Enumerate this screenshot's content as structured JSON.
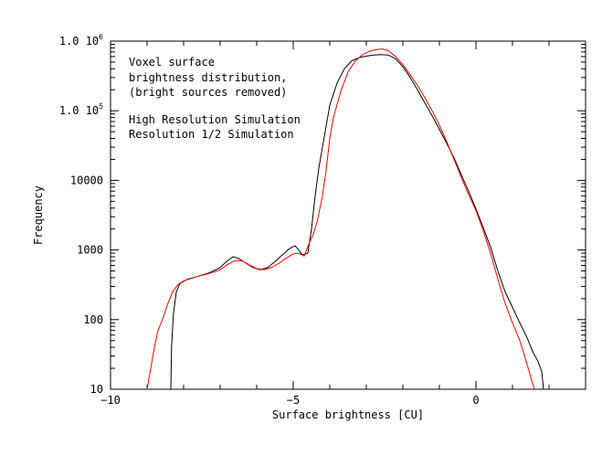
{
  "chart_data": {
    "type": "line",
    "title": "",
    "xlabel": "Surface brightness [CU]",
    "ylabel": "Frequency",
    "xlim": [
      -10,
      3
    ],
    "ylim": [
      10,
      1000000
    ],
    "yscale": "log",
    "x_ticks": [
      {
        "value": -10,
        "label": "−10"
      },
      {
        "value": -5,
        "label": "−5"
      },
      {
        "value": 0,
        "label": "0"
      }
    ],
    "y_ticks": [
      {
        "value": 10,
        "label": "10",
        "exp": ""
      },
      {
        "value": 100,
        "label": "100",
        "exp": ""
      },
      {
        "value": 1000,
        "label": "1000",
        "exp": ""
      },
      {
        "value": 10000,
        "label": "10000",
        "exp": ""
      },
      {
        "value": 100000,
        "label": "1.0 10",
        "exp": "5"
      },
      {
        "value": 1000000,
        "label": "1.0 10",
        "exp": "6"
      }
    ],
    "annotation_lines": [
      "Voxel surface",
      "brightness distribution,",
      "(bright sources removed)"
    ],
    "grid": false,
    "legend_position": "top-left",
    "series": [
      {
        "name": "High Resolution Simulation",
        "color": "#000000",
        "points": [
          [
            -8.35,
            10
          ],
          [
            -8.33,
            40
          ],
          [
            -8.28,
            120
          ],
          [
            -8.2,
            250
          ],
          [
            -8.1,
            330
          ],
          [
            -7.9,
            380
          ],
          [
            -7.6,
            420
          ],
          [
            -7.3,
            470
          ],
          [
            -7.0,
            560
          ],
          [
            -6.8,
            700
          ],
          [
            -6.65,
            800
          ],
          [
            -6.5,
            760
          ],
          [
            -6.3,
            650
          ],
          [
            -6.1,
            560
          ],
          [
            -5.9,
            520
          ],
          [
            -5.7,
            560
          ],
          [
            -5.5,
            680
          ],
          [
            -5.3,
            850
          ],
          [
            -5.1,
            1050
          ],
          [
            -4.95,
            1150
          ],
          [
            -4.85,
            1000
          ],
          [
            -4.75,
            850
          ],
          [
            -4.6,
            900
          ],
          [
            -4.5,
            2000
          ],
          [
            -4.4,
            6000
          ],
          [
            -4.3,
            15000
          ],
          [
            -4.2,
            30000
          ],
          [
            -4.1,
            60000
          ],
          [
            -4.0,
            120000
          ],
          [
            -3.8,
            250000
          ],
          [
            -3.6,
            400000
          ],
          [
            -3.4,
            520000
          ],
          [
            -3.2,
            580000
          ],
          [
            -3.0,
            610000
          ],
          [
            -2.8,
            630000
          ],
          [
            -2.6,
            640000
          ],
          [
            -2.4,
            630000
          ],
          [
            -2.2,
            560000
          ],
          [
            -2.0,
            430000
          ],
          [
            -1.8,
            300000
          ],
          [
            -1.6,
            200000
          ],
          [
            -1.4,
            130000
          ],
          [
            -1.2,
            85000
          ],
          [
            -1.0,
            54000
          ],
          [
            -0.8,
            34000
          ],
          [
            -0.6,
            21000
          ],
          [
            -0.4,
            12000
          ],
          [
            -0.2,
            7000
          ],
          [
            0.0,
            3900
          ],
          [
            0.2,
            2100
          ],
          [
            0.4,
            1100
          ],
          [
            0.6,
            500
          ],
          [
            0.8,
            250
          ],
          [
            1.0,
            150
          ],
          [
            1.2,
            90
          ],
          [
            1.4,
            55
          ],
          [
            1.55,
            35
          ],
          [
            1.7,
            25
          ],
          [
            1.8,
            18
          ],
          [
            1.85,
            10
          ]
        ]
      },
      {
        "name": "Resolution 1/2 Simulation",
        "color": "#ff0000",
        "points": [
          [
            -9.0,
            10
          ],
          [
            -8.9,
            20
          ],
          [
            -8.8,
            40
          ],
          [
            -8.7,
            70
          ],
          [
            -8.55,
            110
          ],
          [
            -8.45,
            160
          ],
          [
            -8.3,
            250
          ],
          [
            -8.15,
            320
          ],
          [
            -8.0,
            360
          ],
          [
            -7.8,
            390
          ],
          [
            -7.6,
            420
          ],
          [
            -7.3,
            460
          ],
          [
            -7.0,
            520
          ],
          [
            -6.8,
            620
          ],
          [
            -6.6,
            700
          ],
          [
            -6.4,
            700
          ],
          [
            -6.2,
            610
          ],
          [
            -6.0,
            540
          ],
          [
            -5.8,
            520
          ],
          [
            -5.6,
            560
          ],
          [
            -5.4,
            640
          ],
          [
            -5.2,
            760
          ],
          [
            -5.0,
            880
          ],
          [
            -4.85,
            900
          ],
          [
            -4.7,
            820
          ],
          [
            -4.55,
            1300
          ],
          [
            -4.45,
            1700
          ],
          [
            -4.35,
            2500
          ],
          [
            -4.2,
            6000
          ],
          [
            -4.1,
            14000
          ],
          [
            -4.0,
            40000
          ],
          [
            -3.9,
            80000
          ],
          [
            -3.7,
            190000
          ],
          [
            -3.5,
            360000
          ],
          [
            -3.3,
            520000
          ],
          [
            -3.1,
            640000
          ],
          [
            -2.9,
            720000
          ],
          [
            -2.7,
            760000
          ],
          [
            -2.55,
            770000
          ],
          [
            -2.4,
            730000
          ],
          [
            -2.2,
            600000
          ],
          [
            -2.0,
            460000
          ],
          [
            -1.8,
            330000
          ],
          [
            -1.6,
            230000
          ],
          [
            -1.4,
            155000
          ],
          [
            -1.2,
            100000
          ],
          [
            -1.0,
            62000
          ],
          [
            -0.8,
            36000
          ],
          [
            -0.6,
            20000
          ],
          [
            -0.4,
            11000
          ],
          [
            -0.2,
            6200
          ],
          [
            0.0,
            3700
          ],
          [
            0.2,
            1900
          ],
          [
            0.4,
            900
          ],
          [
            0.6,
            380
          ],
          [
            0.8,
            170
          ],
          [
            1.0,
            90
          ],
          [
            1.2,
            50
          ],
          [
            1.35,
            28
          ],
          [
            1.5,
            15
          ],
          [
            1.6,
            10
          ]
        ]
      }
    ]
  }
}
